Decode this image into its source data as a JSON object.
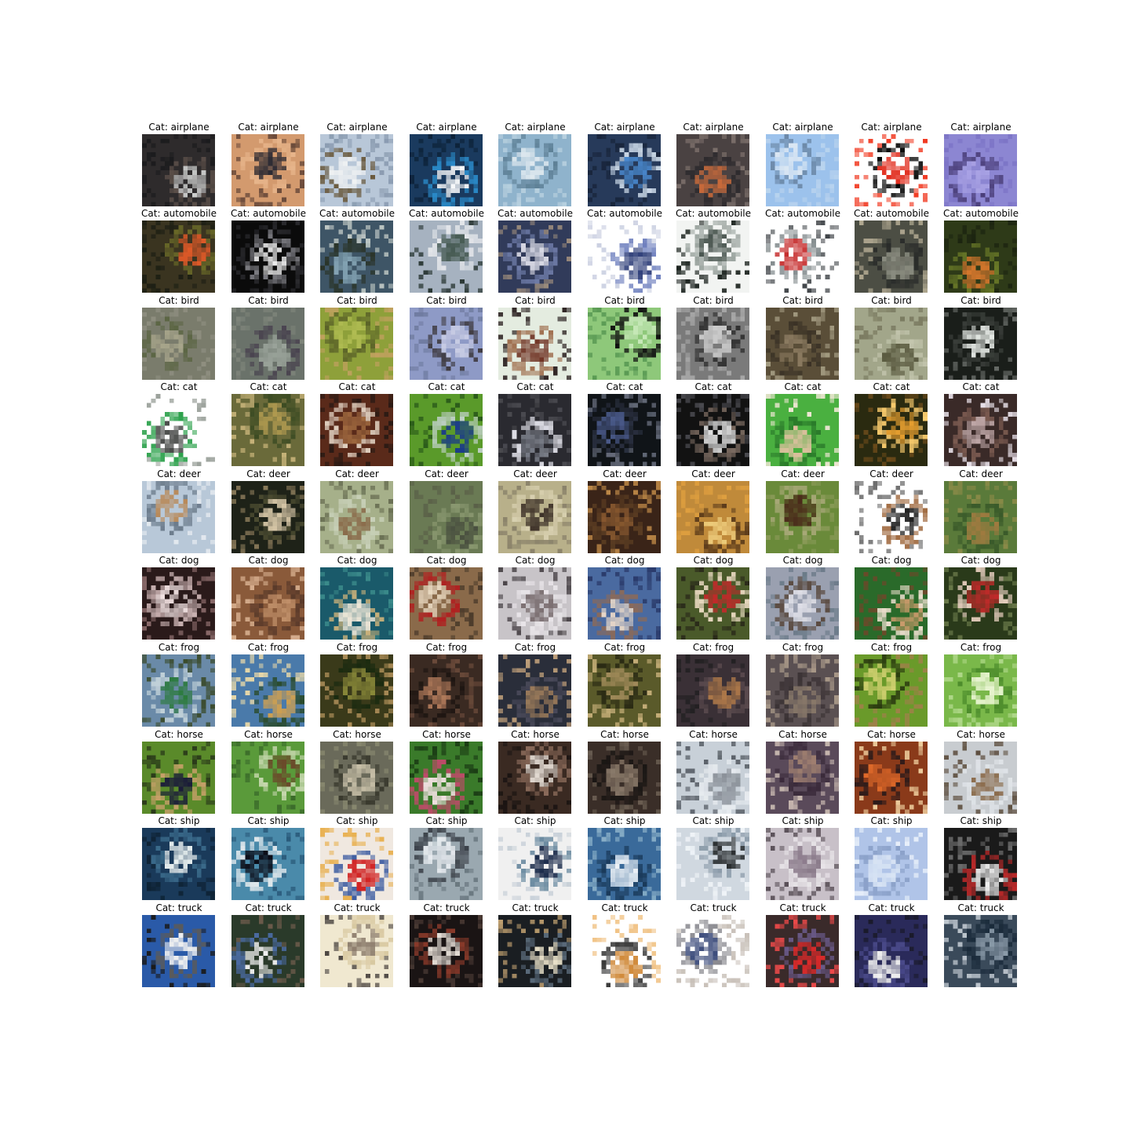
{
  "rows": [
    {
      "title": "Cat: airplane",
      "palette": [
        [
          "#2e2b2c",
          "#cfd0cf",
          "#5a4e48",
          "#1b1b1d"
        ],
        [
          "#d39a6e",
          "#2b2a33",
          "#e7b58b",
          "#6a4a3a"
        ],
        [
          "#b8c7d8",
          "#f0f2f3",
          "#6a5a3e",
          "#8a9bb0"
        ],
        [
          "#1a3a5e",
          "#ffffff",
          "#2a8ac8",
          "#0d2238"
        ],
        [
          "#8fb3cc",
          "#dfe9ef",
          "#5d7f95",
          "#b6cfde"
        ],
        [
          "#273a5a",
          "#4a8ad0",
          "#c9d7e6",
          "#18243a"
        ],
        [
          "#4a4242",
          "#c96a3a",
          "#2e2b2e",
          "#7b6f6a"
        ],
        [
          "#9cc2ec",
          "#dbe7f3",
          "#6b87a6",
          "#b9d3ee"
        ],
        [
          "#ffffff",
          "#e02414",
          "#000000",
          "#f13a22"
        ],
        [
          "#8c86d2",
          "#a9a2e4",
          "#4b3f7a",
          "#7c74c6"
        ]
      ]
    },
    {
      "title": "Cat: automobile",
      "palette": [
        [
          "#3a3420",
          "#e05a28",
          "#6a6a28",
          "#1d1f14"
        ],
        [
          "#0b0b0b",
          "#f0f0f0",
          "#7a7a80",
          "#2a2a2e"
        ],
        [
          "#3e5566",
          "#86a6b6",
          "#2a3428",
          "#c0c9c5"
        ],
        [
          "#a6b2c0",
          "#465a52",
          "#e4e6ea",
          "#23302c"
        ],
        [
          "#313b5a",
          "#dcdde8",
          "#6f7ca8",
          "#9c8c7c"
        ],
        [
          "#ffffff",
          "#30407a",
          "#6a7cbc",
          "#ccd1e2"
        ],
        [
          "#f2f4f2",
          "#4a5650",
          "#9aa39e",
          "#1d2420"
        ],
        [
          "#ffffff",
          "#c52a2a",
          "#868e90",
          "#404448"
        ],
        [
          "#4c4e44",
          "#8a8c80",
          "#2a2c2a",
          "#b0a890"
        ],
        [
          "#2e3a18",
          "#d2762c",
          "#6a7a28",
          "#1c2410"
        ]
      ]
    },
    {
      "title": "Cat: bird",
      "palette": [
        [
          "#7a7c6c",
          "#a6a48a",
          "#5c6644",
          "#8e8e80"
        ],
        [
          "#6a726a",
          "#9aa39a",
          "#4a4450",
          "#7e847a"
        ],
        [
          "#8ea03a",
          "#b0bc52",
          "#5a6228",
          "#c2a060"
        ],
        [
          "#8e9ac6",
          "#c8cce4",
          "#3e3a40",
          "#6e7a9e"
        ],
        [
          "#e4ece0",
          "#6a2a1a",
          "#a07050",
          "#2a2020"
        ],
        [
          "#8ec87a",
          "#c6e8b8",
          "#101010",
          "#5a9a54"
        ],
        [
          "#7a7a7a",
          "#cccccc",
          "#2e2e2e",
          "#a8a8a8"
        ],
        [
          "#5a4e38",
          "#8a7a60",
          "#3a3226",
          "#a29a80"
        ],
        [
          "#a2a68a",
          "#5a5a40",
          "#c4c6ae",
          "#7a7a60"
        ],
        [
          "#1a1e1a",
          "#e6eae6",
          "#3a3e3a",
          "#6a6e6a"
        ]
      ]
    },
    {
      "title": "Cat: cat",
      "palette": [
        [
          "#ffffff",
          "#4a4c4a",
          "#2aa04a",
          "#9aa09a"
        ],
        [
          "#6a6a3a",
          "#b09a50",
          "#3a4a22",
          "#c8b47a"
        ],
        [
          "#5a2a1a",
          "#a06a40",
          "#e0d0c0",
          "#2a1a14"
        ],
        [
          "#5a9a2a",
          "#1a3a8a",
          "#c0d0c8",
          "#2a5a1a"
        ],
        [
          "#2a2a30",
          "#7a7e88",
          "#e0e0e8",
          "#4a4a50"
        ],
        [
          "#101418",
          "#4a5a8a",
          "#2a3040",
          "#6a7080"
        ],
        [
          "#121212",
          "#e0e0e0",
          "#7a6a60",
          "#4a4a50"
        ],
        [
          "#4ab040",
          "#e0c0a0",
          "#2a7a2a",
          "#f4e8d8"
        ],
        [
          "#2a2a10",
          "#e8a030",
          "#ffd070",
          "#6a4a1a"
        ],
        [
          "#3a2a28",
          "#c0a8a8",
          "#7a5a50",
          "#e8e0e8"
        ]
      ]
    },
    {
      "title": "Cat: deer",
      "palette": [
        [
          "#b8c8d8",
          "#b88a5a",
          "#6a7a8a",
          "#e2e8ee"
        ],
        [
          "#1e2218",
          "#d8c8a8",
          "#4a4a30",
          "#8a7a5a"
        ],
        [
          "#a6b08a",
          "#8a6a4a",
          "#c8d0b8",
          "#6a7054"
        ],
        [
          "#6a7a54",
          "#4a5040",
          "#8a9870",
          "#5a6048"
        ],
        [
          "#b8b08a",
          "#3a2e26",
          "#d8d0b0",
          "#8a826a"
        ],
        [
          "#3a2418",
          "#8a5a30",
          "#5a3c22",
          "#c08a48"
        ],
        [
          "#c08a3a",
          "#f0d080",
          "#5a3a1a",
          "#e0a040"
        ],
        [
          "#6a8a3a",
          "#4a2a1a",
          "#a8a878",
          "#8a9a58"
        ],
        [
          "#ffffff",
          "#1a1a1a",
          "#a06a40",
          "#6a6a6a"
        ],
        [
          "#5a7a3a",
          "#a07a40",
          "#3a5a2a",
          "#8a8a48"
        ]
      ]
    },
    {
      "title": "Cat: dog",
      "palette": [
        [
          "#2a1a1a",
          "#f0e0e0",
          "#c8b0b0",
          "#8a6a6a"
        ],
        [
          "#8a5a3a",
          "#c0906a",
          "#5a3a2a",
          "#d8b090"
        ],
        [
          "#1a5a6a",
          "#f0e8d8",
          "#c8b07a",
          "#3a8a8a"
        ],
        [
          "#8a6a4a",
          "#e8d8c0",
          "#b02020",
          "#4a3a2a"
        ],
        [
          "#c8c4c8",
          "#7a6e70",
          "#e8e4e8",
          "#4a4448"
        ],
        [
          "#4a6aa0",
          "#e8d8c8",
          "#8a6a5a",
          "#2a3a6a"
        ],
        [
          "#4a5a2a",
          "#c02a2a",
          "#e8d8c0",
          "#2a2a1a"
        ],
        [
          "#9aa0b0",
          "#e0e0e8",
          "#5a4a40",
          "#6a7a88"
        ],
        [
          "#2a6a2a",
          "#c89a6a",
          "#f0e0d0",
          "#6a4a2a"
        ],
        [
          "#2a3a1a",
          "#c02a2a",
          "#e8d0c0",
          "#6a7a4a"
        ]
      ]
    },
    {
      "title": "Cat: frog",
      "palette": [
        [
          "#6a8aa8",
          "#2a7a3a",
          "#c0d0d8",
          "#3a4a2a"
        ],
        [
          "#4a7aaa",
          "#d0a050",
          "#2a4a2a",
          "#e8d8a8"
        ],
        [
          "#3a3a1a",
          "#8a8a3a",
          "#1a2a10",
          "#b0905a"
        ],
        [
          "#3a2a22",
          "#b07a5a",
          "#1e1612",
          "#6a4a3a"
        ],
        [
          "#2a2e3a",
          "#9a7a5a",
          "#4a4a5a",
          "#c0a07a"
        ],
        [
          "#5a5a2a",
          "#a08a5a",
          "#2a2a14",
          "#c8b07a"
        ],
        [
          "#3a3036",
          "#b07a4a",
          "#5a4a4e",
          "#222022"
        ],
        [
          "#5a5052",
          "#8a7a6a",
          "#3a3234",
          "#a89888"
        ],
        [
          "#6a9a2a",
          "#d0d070",
          "#2a3a10",
          "#a0804a"
        ],
        [
          "#7ab84a",
          "#e8f4d0",
          "#4a8a2a",
          "#b0d88a"
        ]
      ]
    },
    {
      "title": "Cat: horse",
      "palette": [
        [
          "#5a8a2a",
          "#1a1a3a",
          "#c8a06a",
          "#2a3a1a"
        ],
        [
          "#5a9a3a",
          "#6a4a2a",
          "#c8d8b0",
          "#3a6a2a"
        ],
        [
          "#6a6a5a",
          "#c8c0a8",
          "#3a3a2e",
          "#8a8a70"
        ],
        [
          "#3a7a2a",
          "#f0e0e0",
          "#c04a6a",
          "#1a3a14"
        ],
        [
          "#3a2a22",
          "#e0d8d0",
          "#8a6a5a",
          "#1a1412"
        ],
        [
          "#3a2e28",
          "#8a7a6a",
          "#1a1614",
          "#6a5e52"
        ],
        [
          "#c8d0d8",
          "#8a9098",
          "#e8ecf0",
          "#5a6068"
        ],
        [
          "#5a4a5a",
          "#a08070",
          "#3a2a3a",
          "#c8b8b0"
        ],
        [
          "#8a3a1a",
          "#e06a2a",
          "#2a1a1a",
          "#f0d0a0"
        ],
        [
          "#c8ccd0",
          "#8a6a4a",
          "#e0e4e8",
          "#5a4a3a"
        ]
      ]
    },
    {
      "title": "Cat: ship",
      "palette": [
        [
          "#1a3a5a",
          "#e8f0f0",
          "#3a6a8a",
          "#0e2234"
        ],
        [
          "#4a8aaa",
          "#0a0a14",
          "#e0e8ec",
          "#2a5a7a"
        ],
        [
          "#f0e8e0",
          "#d02020",
          "#3a5aa0",
          "#e8b050"
        ],
        [
          "#9aa8b0",
          "#e8ecf0",
          "#3a4048",
          "#6a7880"
        ],
        [
          "#f0f0f0",
          "#1a2a4a",
          "#6a8aa0",
          "#c8d0d8"
        ],
        [
          "#3a6a9a",
          "#f0f4f8",
          "#1a3a5a",
          "#8ab0c8"
        ],
        [
          "#d0d8e0",
          "#2a2e30",
          "#8a9aa8",
          "#f0f4f8"
        ],
        [
          "#c8c0c8",
          "#8a7a8a",
          "#e8e4e8",
          "#5a5058"
        ],
        [
          "#b0c4e8",
          "#d8e4f4",
          "#8aa0c8",
          "#e8f0fa"
        ],
        [
          "#1a1a1a",
          "#f0f0f0",
          "#c02a2a",
          "#6a6a6a"
        ]
      ]
    },
    {
      "title": "Cat: truck",
      "palette": [
        [
          "#2a5aa8",
          "#f0f0f0",
          "#5a5a5a",
          "#1a1a1a"
        ],
        [
          "#2a3a2a",
          "#f0f0f0",
          "#4a6aa0",
          "#6a5a4a"
        ],
        [
          "#f0e8d0",
          "#8a7a6a",
          "#d8c8a0",
          "#4a4440"
        ],
        [
          "#1a1414",
          "#e8e0d8",
          "#8a3a2a",
          "#4a3a34"
        ],
        [
          "#1a1e22",
          "#e8e0c8",
          "#5a6a7a",
          "#c0a070"
        ],
        [
          "#ffffff",
          "#d08a3a",
          "#3a3a3a",
          "#f0c080"
        ],
        [
          "#ffffff",
          "#3a4a7a",
          "#8a8a90",
          "#c8c0b8"
        ],
        [
          "#3a2a2a",
          "#e02a2a",
          "#6a5a8a",
          "#f04a4a"
        ],
        [
          "#2a2a5a",
          "#f0f0f0",
          "#4a4a8a",
          "#1a1a2a"
        ],
        [
          "#3a4a5a",
          "#8a9aa8",
          "#1a2a3a",
          "#c0c8d0"
        ]
      ]
    }
  ]
}
